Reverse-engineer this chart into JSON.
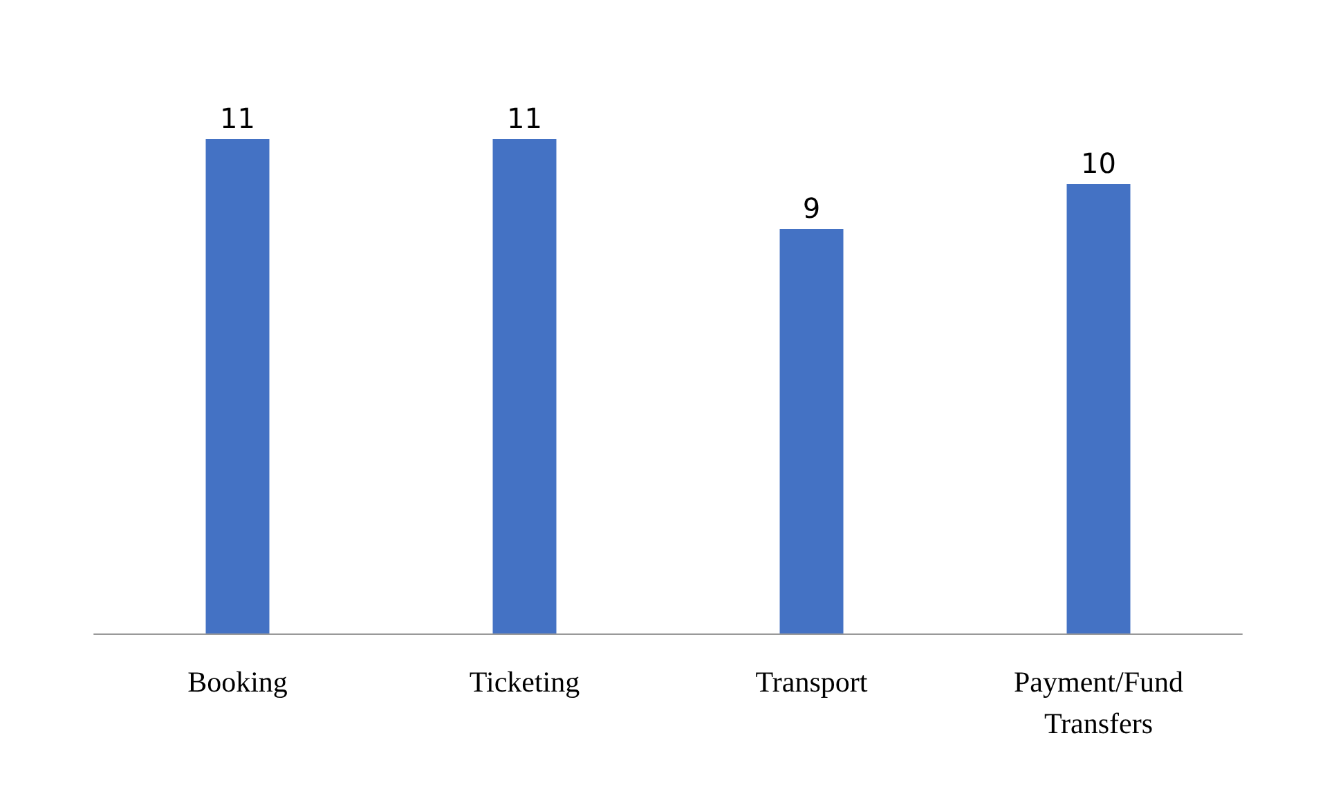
{
  "chart_data": {
    "type": "bar",
    "categories": [
      "Booking",
      "Ticketing",
      "Transport",
      "Payment/Fund\nTransfers"
    ],
    "values": [
      11,
      11,
      9,
      10
    ],
    "color": "#4472c4",
    "data_labels": true
  }
}
